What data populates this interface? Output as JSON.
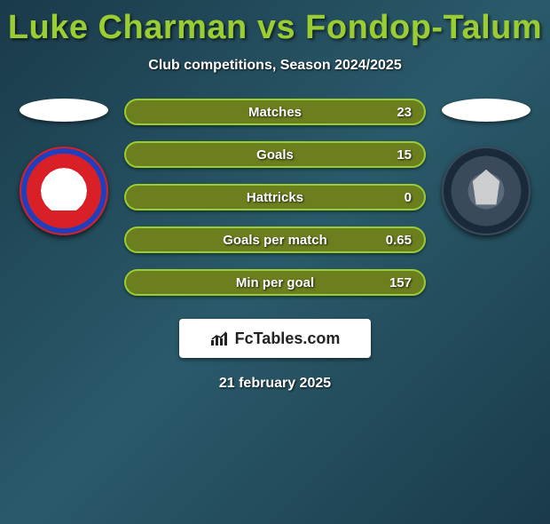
{
  "title": "Luke Charman vs Fondop-Talum",
  "subtitle": "Club competitions, Season 2024/2025",
  "date": "21 february 2025",
  "brand": {
    "text": "FcTables.com"
  },
  "colors": {
    "title": "#9acd32",
    "text": "#ffffff",
    "bar_fill": "#6b7f1f",
    "bar_border": "#9acd32",
    "brand_bg": "#ffffff",
    "brand_text": "#222222"
  },
  "typography": {
    "title_fontsize": 38,
    "subtitle_fontsize": 16,
    "bar_label_fontsize": 15,
    "brand_fontsize": 18,
    "date_fontsize": 16
  },
  "stats": [
    {
      "label": "Matches",
      "value": "23"
    },
    {
      "label": "Goals",
      "value": "15"
    },
    {
      "label": "Hattricks",
      "value": "0"
    },
    {
      "label": "Goals per match",
      "value": "0.65"
    },
    {
      "label": "Min per goal",
      "value": "157"
    }
  ],
  "left_crest": {
    "name": "AFC Fylde",
    "primary": "#d92027",
    "secondary": "#1f3fbf"
  },
  "right_crest": {
    "name": "Oldham Athletic",
    "primary": "#3a4a5a",
    "secondary": "#5a6a7a"
  }
}
